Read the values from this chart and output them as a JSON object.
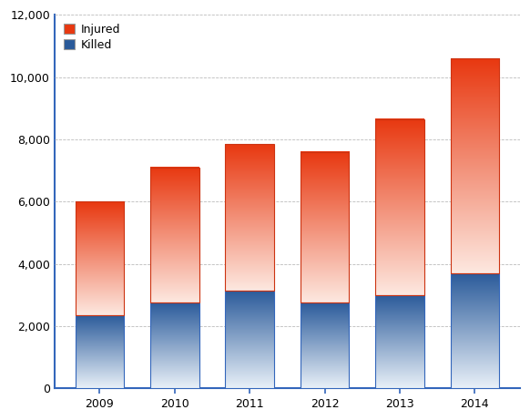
{
  "categories": [
    "2009",
    "2010",
    "2011",
    "2012",
    "2013",
    "2014"
  ],
  "killed": [
    2360,
    2750,
    3150,
    2750,
    3000,
    3700
  ],
  "totals": [
    6000,
    7100,
    7850,
    7600,
    8650,
    10600
  ],
  "ylim": [
    0,
    12000
  ],
  "yticks": [
    0,
    2000,
    4000,
    6000,
    8000,
    10000,
    12000
  ],
  "bar_width": 0.65,
  "killed_color_top": "#2a5a9a",
  "killed_color_bottom": "#e8f0f8",
  "injured_color_top": "#e83810",
  "injured_color_bottom": "#fde8e0",
  "legend_injured": "Injured",
  "legend_killed": "Killed",
  "background_color": "#ffffff",
  "grid_color": "#bbbbbb",
  "spine_color": "#3366bb",
  "tick_color": "#3366bb",
  "label_fontsize": 9,
  "legend_fontsize": 9
}
